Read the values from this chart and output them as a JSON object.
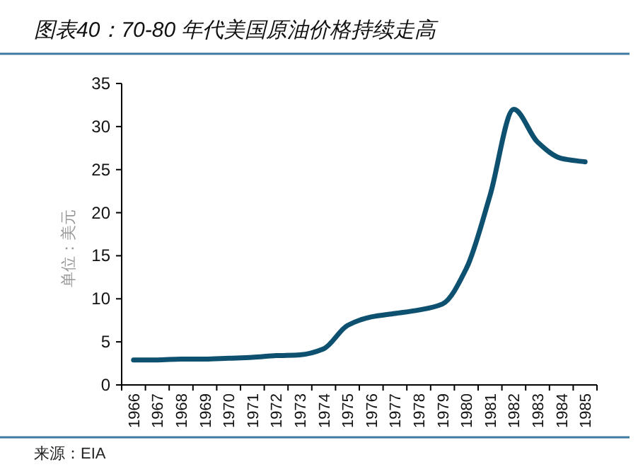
{
  "chart_data": {
    "type": "line",
    "title": "图表40：70-80 年代美国原油价格持续走高",
    "ylabel": "单位：美元",
    "categories": [
      "1966",
      "1967",
      "1968",
      "1969",
      "1970",
      "1971",
      "1972",
      "1973",
      "1974",
      "1975",
      "1976",
      "1977",
      "1978",
      "1979",
      "1980",
      "1981",
      "1982",
      "1983",
      "1984",
      "1985"
    ],
    "series": [
      {
        "color": "#0e5070",
        "values": [
          2.9,
          2.9,
          3.0,
          3.0,
          3.1,
          3.2,
          3.4,
          3.5,
          4.2,
          6.9,
          7.9,
          8.3,
          8.7,
          9.4,
          13.5,
          22,
          32,
          28.2,
          26.3,
          25.9
        ]
      }
    ],
    "ylim": [
      0,
      35
    ],
    "yticks": [
      0,
      5,
      10,
      15,
      20,
      25,
      30,
      35
    ],
    "annotations": [
      "来源：EIA"
    ]
  }
}
